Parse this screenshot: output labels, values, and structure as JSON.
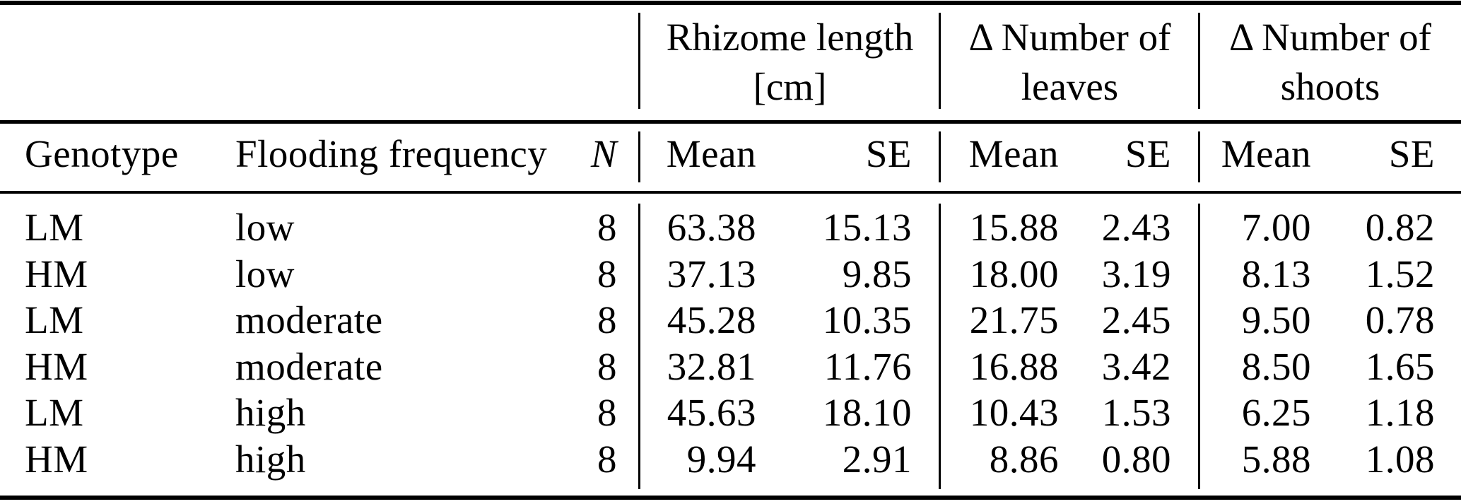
{
  "page": {
    "background": "#ffffff",
    "text_color": "#000000",
    "rule_color": "#000000"
  },
  "table": {
    "column_groups": [
      {
        "title_line1": "Rhizome length",
        "title_line2": "[cm]"
      },
      {
        "title_line1": "Δ Number of",
        "title_line2": "leaves"
      },
      {
        "title_line1": "Δ Number of",
        "title_line2": "shoots"
      }
    ],
    "headers": {
      "genotype": "Genotype",
      "flooding_frequency": "Flooding frequency",
      "n": "N",
      "mean": "Mean",
      "se": "SE"
    },
    "rows": [
      {
        "genotype": "LM",
        "flooding_frequency": "low",
        "n": "8",
        "rhizome_mean": "63.38",
        "rhizome_se": "15.13",
        "leaves_mean": "15.88",
        "leaves_se": "2.43",
        "shoots_mean": "7.00",
        "shoots_se": "0.82"
      },
      {
        "genotype": "HM",
        "flooding_frequency": "low",
        "n": "8",
        "rhizome_mean": "37.13",
        "rhizome_se": "9.85",
        "leaves_mean": "18.00",
        "leaves_se": "3.19",
        "shoots_mean": "8.13",
        "shoots_se": "1.52"
      },
      {
        "genotype": "LM",
        "flooding_frequency": "moderate",
        "n": "8",
        "rhizome_mean": "45.28",
        "rhizome_se": "10.35",
        "leaves_mean": "21.75",
        "leaves_se": "2.45",
        "shoots_mean": "9.50",
        "shoots_se": "0.78"
      },
      {
        "genotype": "HM",
        "flooding_frequency": "moderate",
        "n": "8",
        "rhizome_mean": "32.81",
        "rhizome_se": "11.76",
        "leaves_mean": "16.88",
        "leaves_se": "3.42",
        "shoots_mean": "8.50",
        "shoots_se": "1.65"
      },
      {
        "genotype": "LM",
        "flooding_frequency": "high",
        "n": "8",
        "rhizome_mean": "45.63",
        "rhizome_se": "18.10",
        "leaves_mean": "10.43",
        "leaves_se": "1.53",
        "shoots_mean": "6.25",
        "shoots_se": "1.18"
      },
      {
        "genotype": "HM",
        "flooding_frequency": "high",
        "n": "8",
        "rhizome_mean": "9.94",
        "rhizome_se": "2.91",
        "leaves_mean": "8.86",
        "leaves_se": "0.80",
        "shoots_mean": "5.88",
        "shoots_se": "1.08"
      }
    ]
  }
}
